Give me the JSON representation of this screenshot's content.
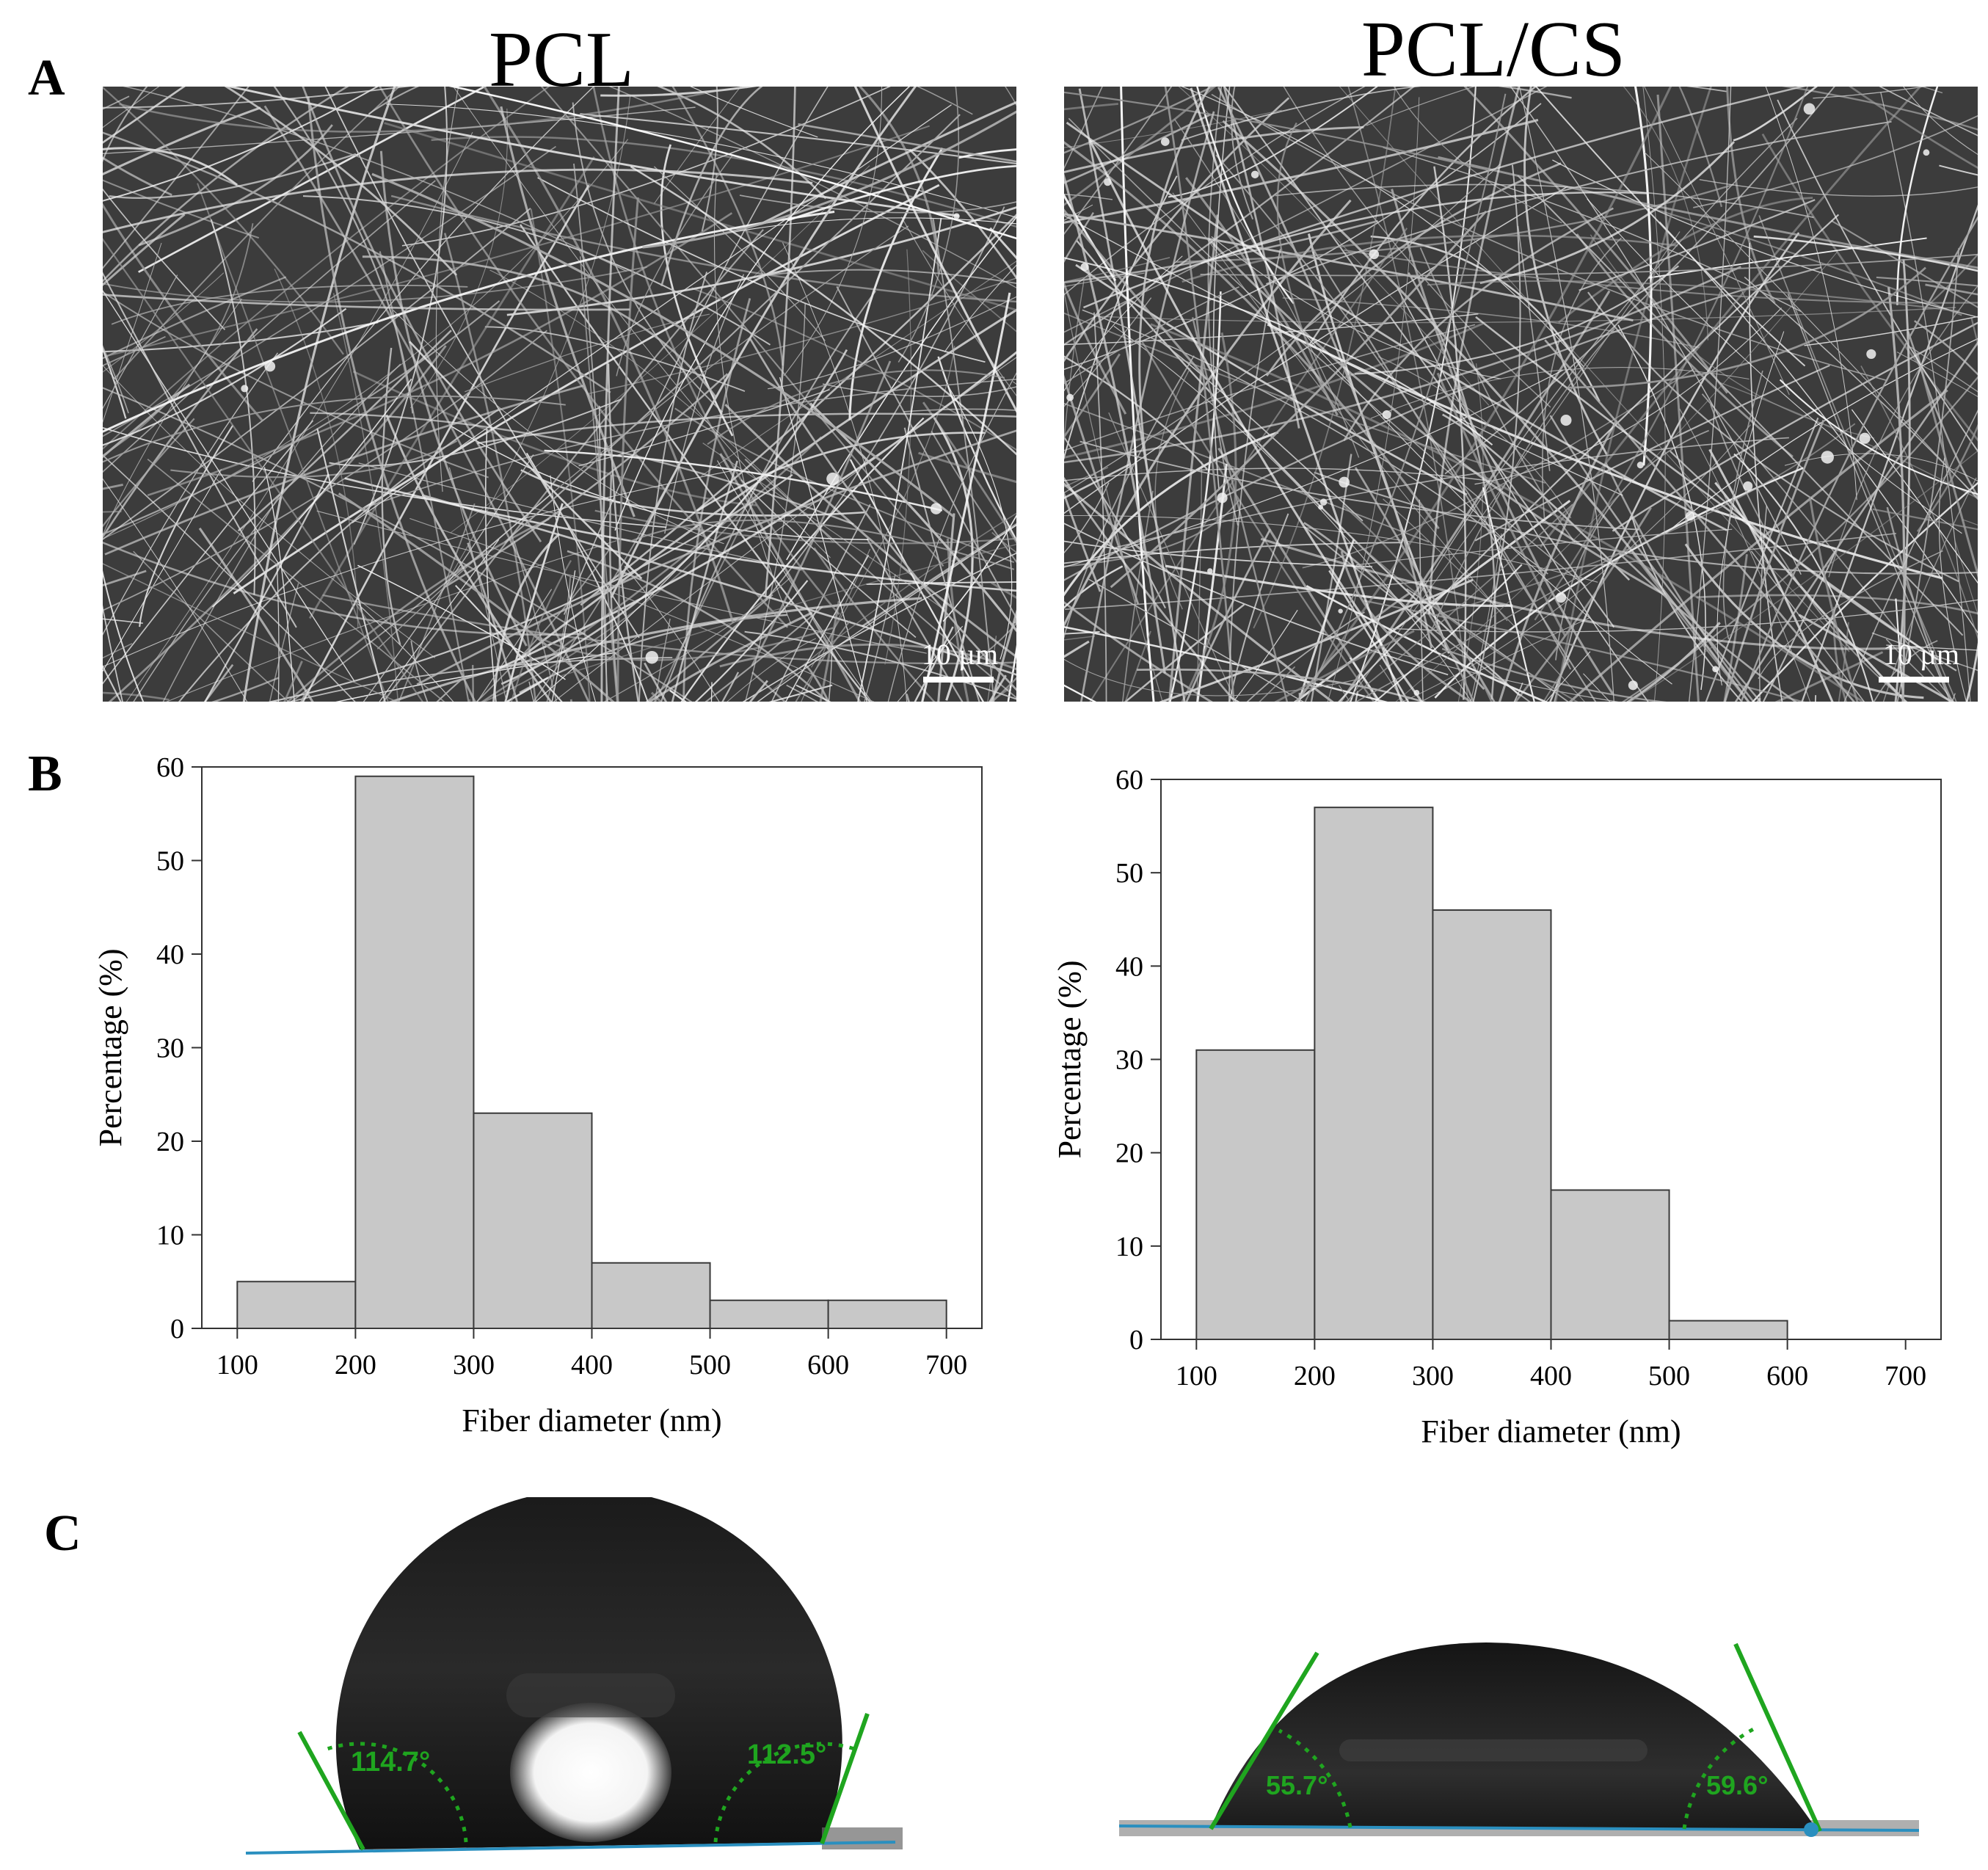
{
  "panels": {
    "a": {
      "letter": "A"
    },
    "b": {
      "letter": "B"
    },
    "c": {
      "letter": "C"
    }
  },
  "columns": [
    {
      "title": "PCL",
      "scale_label": "10 µm"
    },
    {
      "title": "PCL/CS",
      "scale_label": "10 µm"
    }
  ],
  "colors": {
    "bar_fill": "#c8c8c8",
    "bar_stroke": "#3a3a3a",
    "fit_line": "#1fa51f",
    "baseline": "#2a8fbf",
    "drop": "#141414"
  },
  "chart_data": [
    {
      "type": "bar",
      "series_name": "",
      "bins": [
        [
          100,
          200
        ],
        [
          200,
          300
        ],
        [
          300,
          400
        ],
        [
          400,
          500
        ],
        [
          500,
          600
        ],
        [
          600,
          700
        ]
      ],
      "values": [
        5,
        59,
        23,
        7,
        3,
        3
      ],
      "xticks": [
        100,
        200,
        300,
        400,
        500,
        600,
        700
      ],
      "yticks": [
        0,
        10,
        20,
        30,
        40,
        50,
        60
      ],
      "xlim": [
        70,
        730
      ],
      "ylim": [
        0,
        60
      ],
      "xlabel": "Fiber diameter (nm)",
      "ylabel": "Percentage (%)",
      "title": "",
      "grid": false
    },
    {
      "type": "bar",
      "series_name": "",
      "bins": [
        [
          100,
          200
        ],
        [
          200,
          300
        ],
        [
          300,
          400
        ],
        [
          400,
          500
        ],
        [
          500,
          600
        ],
        [
          600,
          700
        ]
      ],
      "values": [
        31,
        57,
        46,
        16,
        2,
        0
      ],
      "xticks": [
        100,
        200,
        300,
        400,
        500,
        600,
        700
      ],
      "yticks": [
        0,
        10,
        20,
        30,
        40,
        50,
        60
      ],
      "xlim": [
        70,
        730
      ],
      "ylim": [
        0,
        60
      ],
      "xlabel": "Fiber diameter (nm)",
      "ylabel": "Percentage (%)",
      "title": "",
      "grid": false
    }
  ],
  "contact_angles": [
    {
      "left": "114.7°",
      "right": "112.5°"
    },
    {
      "left": "55.7°",
      "right": "59.6°"
    }
  ]
}
